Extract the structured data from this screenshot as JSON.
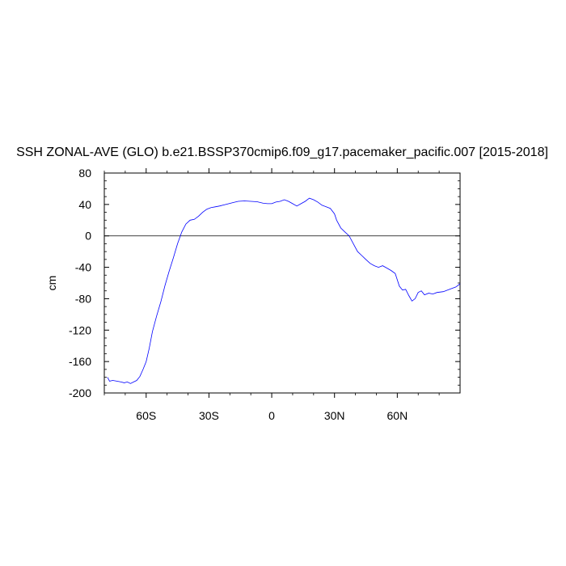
{
  "chart_data": {
    "type": "line",
    "title": "SSH ZONAL-AVE (GLO) b.e21.BSSP370cmip6.f09_g17.pacemaker_pacific.007 [2015-2018]",
    "xlabel": "",
    "ylabel": "cm",
    "xlim": [
      -80,
      90
    ],
    "ylim": [
      -200,
      80
    ],
    "x_ticks": [
      {
        "value": -60,
        "label": "60S"
      },
      {
        "value": -30,
        "label": "30S"
      },
      {
        "value": 0,
        "label": "0"
      },
      {
        "value": 30,
        "label": "30N"
      },
      {
        "value": 60,
        "label": "60N"
      }
    ],
    "y_ticks": [
      {
        "value": 80,
        "label": "80"
      },
      {
        "value": 40,
        "label": "40"
      },
      {
        "value": 0,
        "label": "0"
      },
      {
        "value": -40,
        "label": "-40"
      },
      {
        "value": -80,
        "label": "-80"
      },
      {
        "value": -120,
        "label": "-120"
      },
      {
        "value": -160,
        "label": "-160"
      },
      {
        "value": -200,
        "label": "-200"
      }
    ],
    "reference_line": {
      "y": 0,
      "color": "#000000"
    },
    "grid": false,
    "series": [
      {
        "color": "#0000ff",
        "x": [
          -78.5,
          -77.5,
          -76,
          -74,
          -72,
          -70.5,
          -69,
          -67.5,
          -66,
          -64.5,
          -63,
          -61.5,
          -60,
          -58.5,
          -57,
          -55,
          -53,
          -51,
          -49,
          -47,
          -45,
          -43,
          -41,
          -39,
          -37,
          -35,
          -33,
          -31,
          -29,
          -27,
          -25,
          -22,
          -19,
          -16,
          -13,
          -10,
          -7,
          -4,
          -2,
          0,
          2,
          4,
          6,
          8,
          10,
          12,
          14,
          16,
          18,
          20,
          22,
          24,
          26,
          28,
          30,
          31,
          33,
          35,
          37,
          39,
          41,
          43,
          45,
          47,
          49,
          51,
          53,
          55,
          57,
          59,
          61,
          62.5,
          64,
          65.5,
          67,
          68.5,
          70,
          71.5,
          73,
          75,
          77,
          79,
          82,
          85,
          88,
          90
        ],
        "y": [
          -180,
          -185,
          -184,
          -185,
          -186,
          -187,
          -186,
          -188,
          -186,
          -184,
          -179,
          -170,
          -160,
          -143,
          -122,
          -102,
          -84,
          -63,
          -45,
          -28,
          -10,
          5,
          15,
          20,
          21,
          25,
          30,
          34,
          36,
          37,
          38,
          40,
          42,
          44,
          44.5,
          44,
          43.5,
          41.5,
          41,
          41,
          43,
          44,
          46,
          44,
          41,
          38,
          41,
          44,
          48,
          46,
          43,
          39,
          37,
          35,
          28,
          20,
          10,
          5,
          0,
          -10,
          -20,
          -25,
          -30,
          -35,
          -38,
          -40,
          -38,
          -41,
          -44,
          -48,
          -64,
          -69,
          -68,
          -76,
          -83,
          -80,
          -72,
          -70,
          -75,
          -73,
          -74,
          -72,
          -71,
          -68,
          -65,
          -61
        ]
      }
    ]
  }
}
